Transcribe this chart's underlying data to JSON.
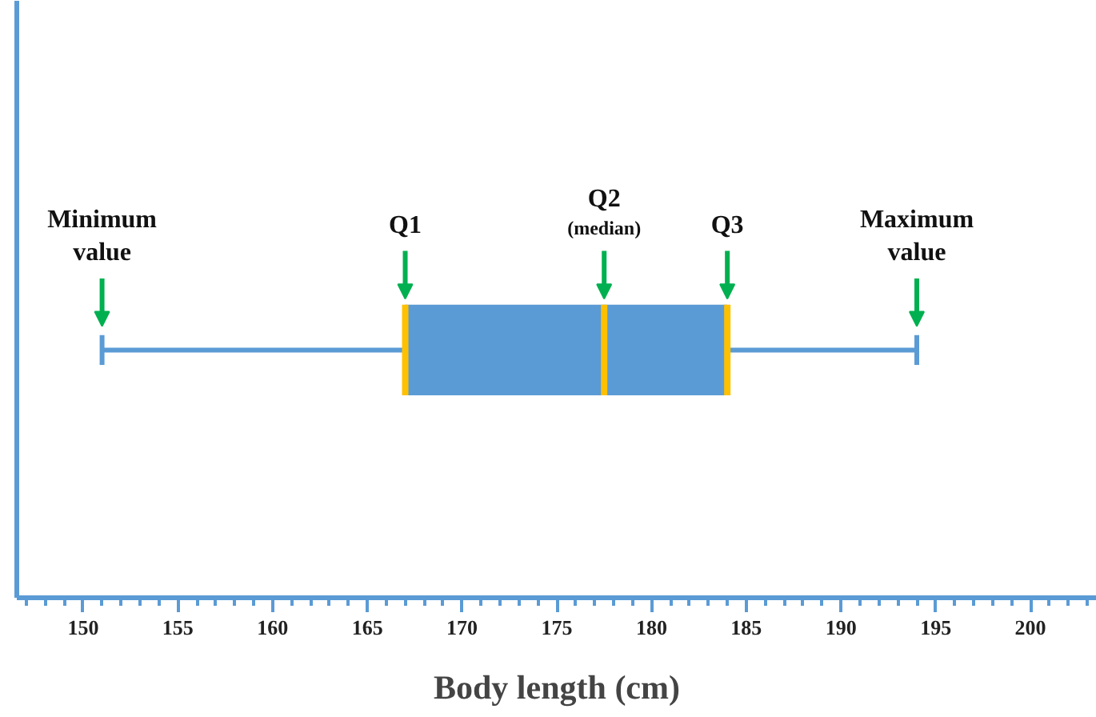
{
  "chart_data": {
    "type": "box",
    "orientation": "horizontal",
    "categories": [
      null
    ],
    "xlabel": "Body length (cm)",
    "boxes": [
      {
        "low": 151,
        "q1": 167,
        "median": 177.5,
        "q3": 184,
        "high": 194
      }
    ],
    "color": "#5b9bd5",
    "xlim": [
      146.5,
      203.5
    ],
    "xticks": [
      150,
      155,
      160,
      165,
      170,
      175,
      180,
      185,
      190,
      195,
      200
    ],
    "tick_labels": "x",
    "grid": false,
    "annotations": [
      "Minimum value",
      "Q1",
      "Q2",
      "(median)",
      "Q3",
      "Maximum value"
    ]
  }
}
